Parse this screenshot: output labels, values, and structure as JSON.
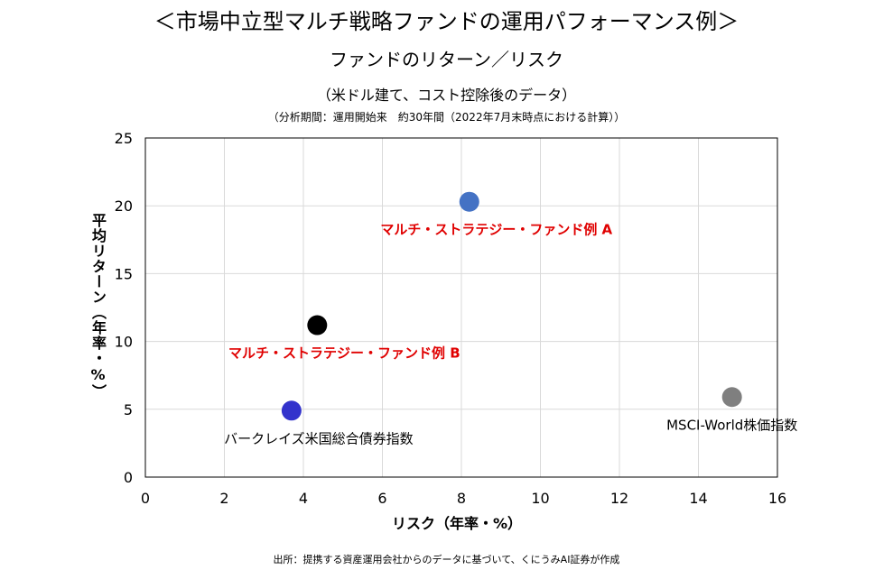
{
  "header": {
    "title": "＜市場中立型マルチ戦略ファンドの運用パフォーマンス例＞",
    "subtitle": "ファンドのリターン／リスク",
    "note1": "（米ドル建て、コスト控除後のデータ）",
    "note2": "（分析期間：運用開始来　約30年間（2022年7月末時点における計算））"
  },
  "footer": {
    "source": "出所：提携する資産運用会社からのデータに基づいて、くにうみAI証券が作成"
  },
  "chart_data": {
    "type": "scatter",
    "title": "ファンドのリターン／リスク",
    "xlabel": "リスク（年率・%）",
    "ylabel": "平均リターン（年率・%）",
    "xlim": [
      0,
      16
    ],
    "ylim": [
      0,
      25
    ],
    "x_ticks": [
      0,
      2,
      4,
      6,
      8,
      10,
      12,
      14,
      16
    ],
    "y_ticks": [
      0,
      5,
      10,
      15,
      20,
      25
    ],
    "grid": true,
    "points": [
      {
        "label": "マルチ・ストラテジー・ファンド例 A",
        "x": 8.2,
        "y": 20.3,
        "color": "#4472C4",
        "label_color": "#E00000",
        "label_bold": true,
        "label_position": "below"
      },
      {
        "label": "マルチ・ストラテジー・ファンド例 B",
        "x": 4.35,
        "y": 11.2,
        "color": "#000000",
        "label_color": "#E00000",
        "label_bold": true,
        "label_position": "below"
      },
      {
        "label": "バークレイズ米国総合債券指数",
        "x": 3.7,
        "y": 4.9,
        "color": "#3333CC",
        "label_color": "#000000",
        "label_bold": false,
        "label_position": "below"
      },
      {
        "label": "MSCI-World株価指数",
        "x": 14.85,
        "y": 5.9,
        "color": "#7F7F7F",
        "label_color": "#000000",
        "label_bold": false,
        "label_position": "below"
      }
    ]
  }
}
